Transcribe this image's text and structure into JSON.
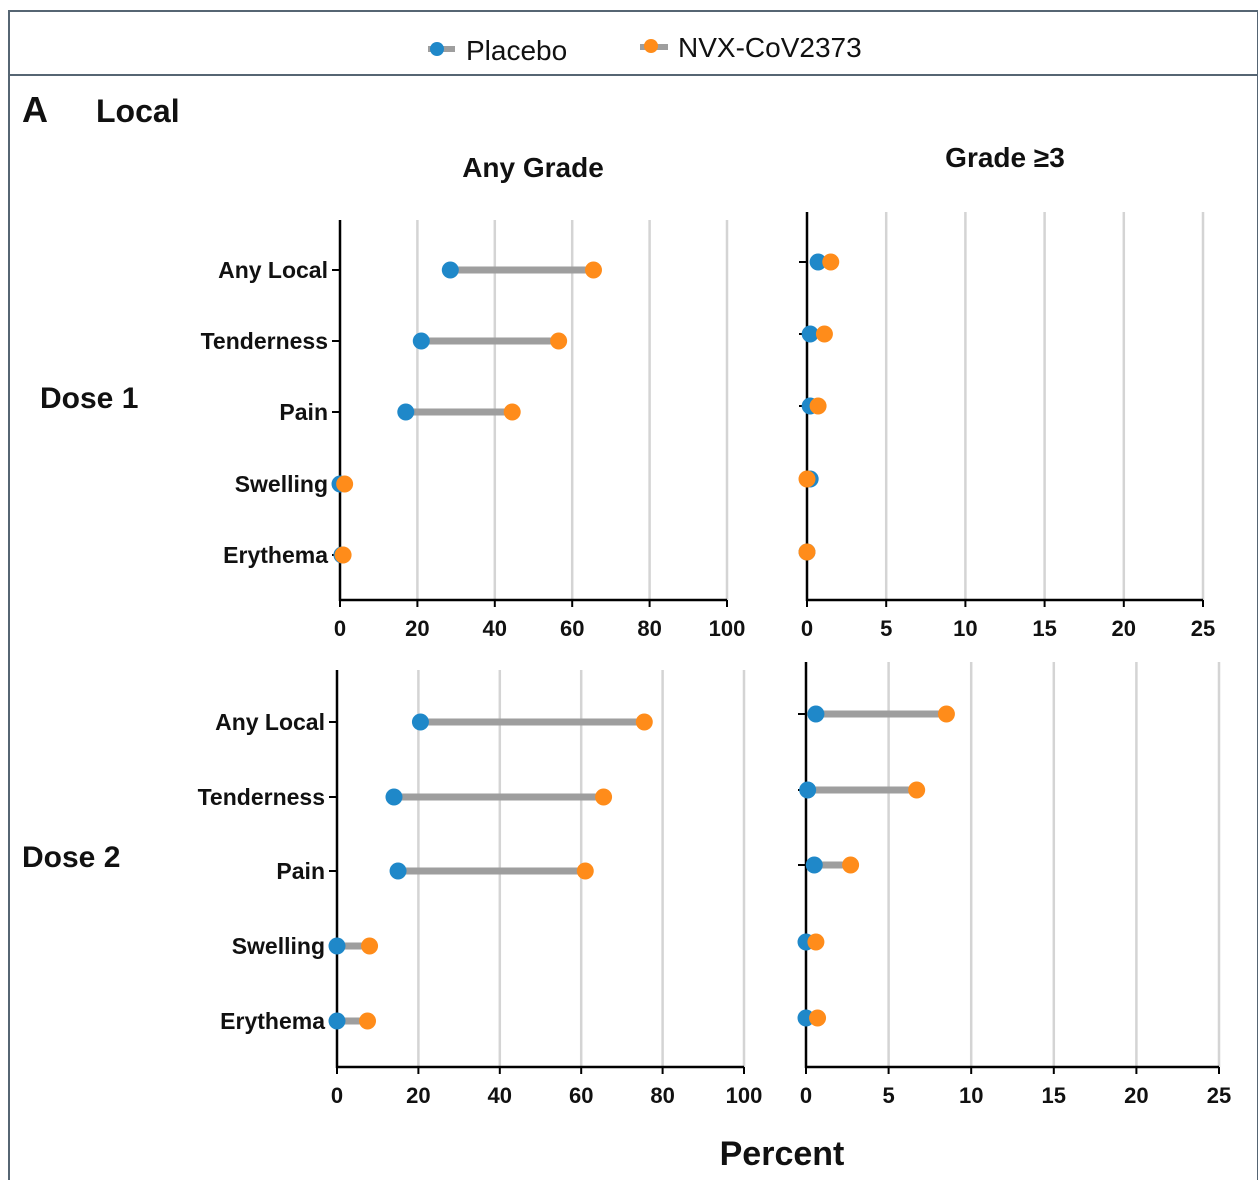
{
  "legend": {
    "items": [
      {
        "label": "Placebo",
        "color": "#1f88c9"
      },
      {
        "label": "NVX-CoV2373",
        "color": "#ff8c1a"
      }
    ]
  },
  "panel": {
    "letter": "A",
    "title": "Local"
  },
  "columns": {
    "left": "Any Grade",
    "right": "Grade ≥3"
  },
  "rows": [
    "Dose 1",
    "Dose 2"
  ],
  "xlabel": "Percent",
  "colors": {
    "placebo": "#1f88c9",
    "vaccine": "#ff8c1a",
    "connector": "#9e9e9e",
    "grid": "#d4d4d4",
    "frame": "#566573"
  },
  "chart_data": [
    {
      "type": "dumbbell",
      "dose": "Dose 1",
      "grade": "Any Grade",
      "categories": [
        "Any Local",
        "Tenderness",
        "Pain",
        "Swelling",
        "Erythema"
      ],
      "xlim": [
        0,
        100
      ],
      "xticks": [
        0,
        20,
        40,
        60,
        80,
        100
      ],
      "grid": true,
      "series": [
        {
          "name": "Placebo",
          "values": [
            28.5,
            21,
            17,
            0,
            0.5
          ]
        },
        {
          "name": "NVX-CoV2373",
          "values": [
            65.5,
            56.5,
            44.5,
            1.2,
            0.8
          ]
        }
      ]
    },
    {
      "type": "dumbbell",
      "dose": "Dose 1",
      "grade": "Grade ≥3",
      "categories": [
        "Any Local",
        "Tenderness",
        "Pain",
        "Swelling",
        "Erythema"
      ],
      "xlim": [
        0,
        25
      ],
      "xticks": [
        0,
        5,
        10,
        15,
        20,
        25
      ],
      "grid": true,
      "series": [
        {
          "name": "Placebo",
          "values": [
            0.7,
            0.2,
            0.2,
            0.2,
            0
          ]
        },
        {
          "name": "NVX-CoV2373",
          "values": [
            1.5,
            1.1,
            0.7,
            0,
            0
          ]
        }
      ]
    },
    {
      "type": "dumbbell",
      "dose": "Dose 2",
      "grade": "Any Grade",
      "categories": [
        "Any Local",
        "Tenderness",
        "Pain",
        "Swelling",
        "Erythema"
      ],
      "xlim": [
        0,
        100
      ],
      "xticks": [
        0,
        20,
        40,
        60,
        80,
        100
      ],
      "grid": true,
      "series": [
        {
          "name": "Placebo",
          "values": [
            20.5,
            14,
            15,
            0,
            0
          ]
        },
        {
          "name": "NVX-CoV2373",
          "values": [
            75.5,
            65.5,
            61,
            8,
            7.5
          ]
        }
      ]
    },
    {
      "type": "dumbbell",
      "dose": "Dose 2",
      "grade": "Grade ≥3",
      "categories": [
        "Any Local",
        "Tenderness",
        "Pain",
        "Swelling",
        "Erythema"
      ],
      "xlim": [
        0,
        25
      ],
      "xticks": [
        0,
        5,
        10,
        15,
        20,
        25
      ],
      "grid": true,
      "series": [
        {
          "name": "Placebo",
          "values": [
            0.6,
            0.1,
            0.5,
            0,
            0
          ]
        },
        {
          "name": "NVX-CoV2373",
          "values": [
            8.5,
            6.7,
            2.7,
            0.6,
            0.7
          ]
        }
      ]
    }
  ]
}
